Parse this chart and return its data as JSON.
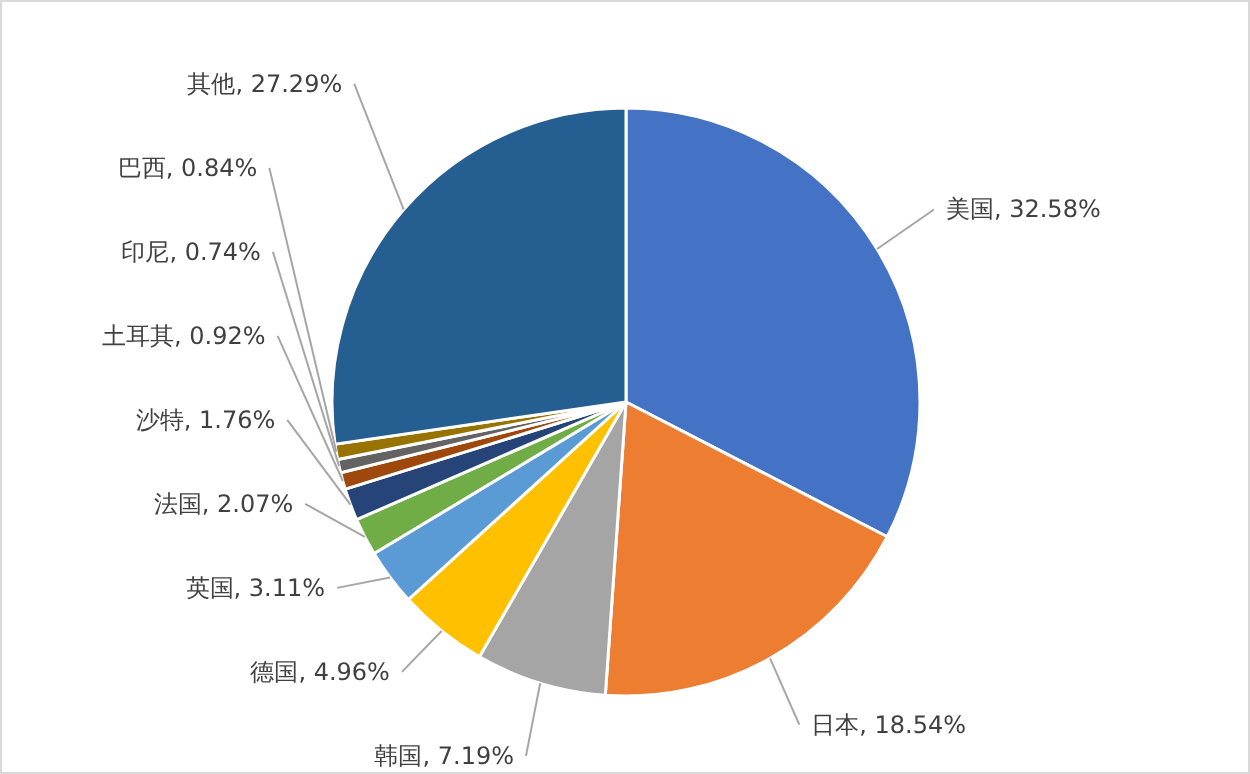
{
  "chart_data": {
    "type": "pie",
    "categories": [
      "美国",
      "日本",
      "韩国",
      "德国",
      "英国",
      "法国",
      "沙特",
      "土耳其",
      "印尼",
      "巴西",
      "其他"
    ],
    "values": [
      32.58,
      18.54,
      7.19,
      4.96,
      3.11,
      2.07,
      1.76,
      0.92,
      0.74,
      0.84,
      27.29
    ],
    "value_labels": [
      "32.58%",
      "18.54%",
      "7.19%",
      "4.96%",
      "3.11%",
      "2.07%",
      "1.76%",
      "0.92%",
      "0.74%",
      "0.84%",
      "27.29%"
    ],
    "colors": [
      "#4472c4",
      "#ed7d31",
      "#a5a5a5",
      "#ffc000",
      "#5b9bd5",
      "#70ad47",
      "#264478",
      "#9e480e",
      "#636363",
      "#997300",
      "#255e91"
    ],
    "legend": false
  }
}
